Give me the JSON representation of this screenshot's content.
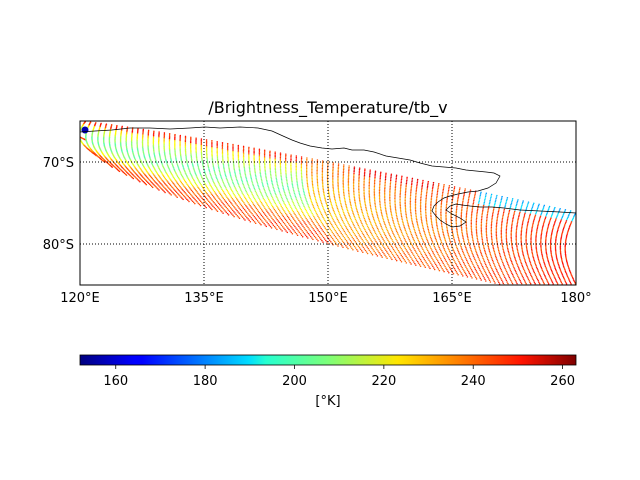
{
  "title": "/Brightness_Temperature/tb_v",
  "map": {
    "lon_range": [
      120,
      180
    ],
    "lat_range": [
      -85,
      -65
    ],
    "x_ticks": [
      {
        "lon": 120,
        "label": "120°E"
      },
      {
        "lon": 135,
        "label": "135°E"
      },
      {
        "lon": 150,
        "label": "150°E"
      },
      {
        "lon": 165,
        "label": "165°E"
      },
      {
        "lon": 180,
        "label": "180°"
      }
    ],
    "y_ticks": [
      {
        "lat": -70,
        "label": "70°S"
      },
      {
        "lat": -80,
        "label": "80°S"
      }
    ],
    "gridlines": true,
    "gridline_style": "dotted",
    "coastline_color": "#000000"
  },
  "colorbar": {
    "colormap": "jet",
    "vmin": 152,
    "vmax": 263,
    "ticks": [
      160,
      180,
      200,
      220,
      240,
      260
    ],
    "tick_labels": [
      "160",
      "180",
      "200",
      "220",
      "240",
      "260"
    ],
    "label": "[°K]",
    "orientation": "horizontal"
  },
  "swath": {
    "description_value_range_K": [
      152,
      263
    ]
  }
}
